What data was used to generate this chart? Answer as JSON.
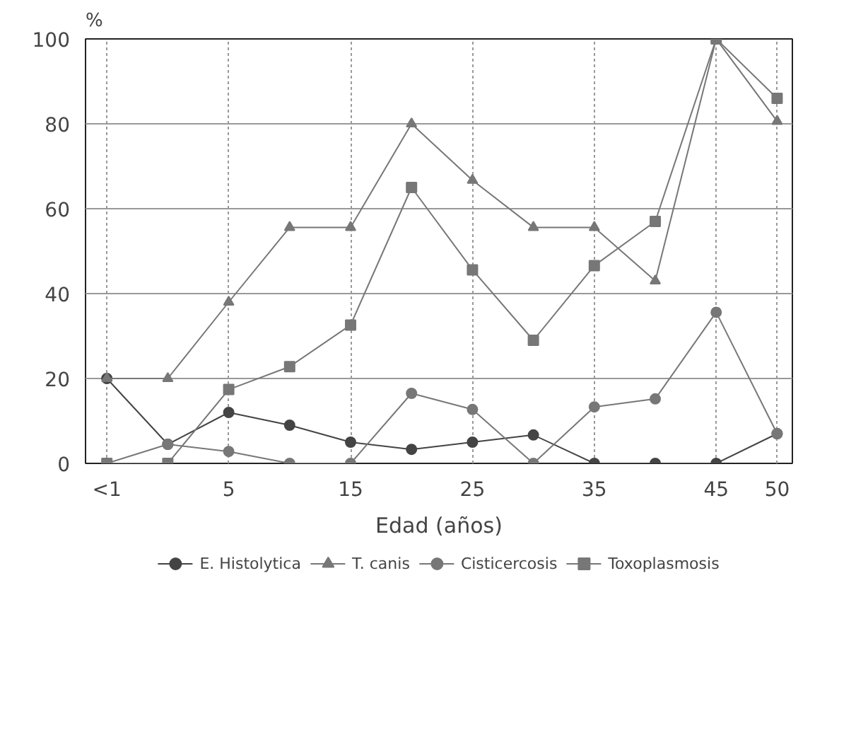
{
  "chart_data": {
    "type": "line",
    "xlabel": "Edad (años)",
    "ylabel": "%",
    "categories": [
      "<1",
      null,
      "5",
      null,
      "15",
      null,
      "25",
      null,
      "35",
      null,
      "45",
      "50"
    ],
    "series": [
      {
        "name": "E. Histolytica",
        "color": "#444444",
        "marker": "circle",
        "values": [
          20,
          4.5,
          12,
          9,
          5,
          3.3,
          5,
          6.7,
          0,
          0,
          0,
          7
        ]
      },
      {
        "name": "T. canis",
        "color": "#777777",
        "marker": "triangle",
        "values": [
          20,
          20,
          38,
          55.6,
          55.6,
          80,
          66.7,
          55.6,
          55.6,
          43,
          100,
          80.6
        ]
      },
      {
        "name": "Cisticercosis",
        "color": "#777777",
        "marker": "circle",
        "values": [
          0,
          4.5,
          2.8,
          0,
          0,
          16.5,
          12.7,
          0,
          13.3,
          15.2,
          35.6,
          7
        ]
      },
      {
        "name": "Toxoplasmosis",
        "color": "#777777",
        "marker": "square",
        "values": [
          0,
          0,
          17.4,
          22.8,
          32.6,
          65,
          45.6,
          29,
          46.6,
          57,
          100,
          86
        ]
      }
    ],
    "ylim": [
      0,
      100
    ],
    "yticks": [
      0,
      20,
      40,
      60,
      80,
      100
    ],
    "grid": true,
    "legend": "bottom",
    "line_style": "solid"
  }
}
